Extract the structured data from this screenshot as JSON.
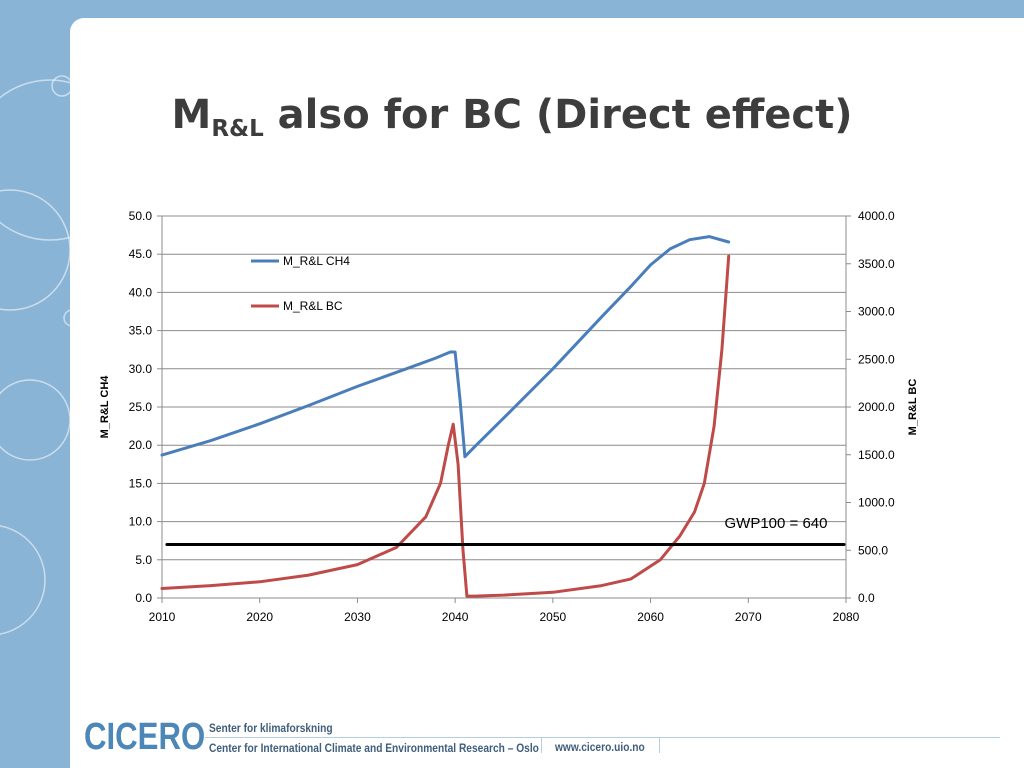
{
  "slide": {
    "title_main": "M",
    "title_sub": "R&L",
    "title_rest": " also for BC (Direct effect)"
  },
  "footer": {
    "logo": "CICERO",
    "line1": "Senter for klimaforskning",
    "line2": "Center for International Climate and Environmental Research – Oslo",
    "website": "www.cicero.uio.no"
  },
  "colors": {
    "background": "#8ab4d6",
    "series_ch4": "#4a7ebb",
    "series_bc": "#be4b48",
    "gwp_line": "#000000"
  },
  "chart_data": {
    "type": "line",
    "x_range": [
      2010,
      2080
    ],
    "x_ticks": [
      "2010",
      "2020",
      "2030",
      "2040",
      "2050",
      "2060",
      "2070",
      "2080"
    ],
    "y_left": {
      "label": "M_R&L CH4",
      "range": [
        0,
        50
      ],
      "ticks": [
        "0.0",
        "5.0",
        "10.0",
        "15.0",
        "20.0",
        "25.0",
        "30.0",
        "35.0",
        "40.0",
        "45.0",
        "50.0"
      ]
    },
    "y_right": {
      "label": "M_R&L BC",
      "range": [
        0,
        4000
      ],
      "ticks": [
        "0.0",
        "500.0",
        "1000.0",
        "1500.0",
        "2000.0",
        "2500.0",
        "3000.0",
        "3500.0",
        "4000.0"
      ]
    },
    "grid": "horizontal",
    "legend_position": "top-left",
    "series": [
      {
        "name": "M_R&L CH4",
        "axis": "left",
        "x": [
          2010,
          2015,
          2020,
          2025,
          2030,
          2035,
          2038,
          2039.5,
          2040,
          2040.5,
          2041,
          2042,
          2045,
          2050,
          2055,
          2058,
          2060,
          2062,
          2064,
          2066,
          2068
        ],
        "y": [
          18.7,
          20.6,
          22.8,
          25.2,
          27.7,
          30.0,
          31.4,
          32.2,
          32.2,
          26.0,
          18.5,
          19.8,
          23.6,
          30.0,
          36.8,
          40.8,
          43.6,
          45.7,
          46.9,
          47.3,
          46.6
        ]
      },
      {
        "name": "M_R&L BC",
        "axis": "right",
        "x": [
          2010,
          2015,
          2020,
          2025,
          2030,
          2034,
          2037,
          2038.5,
          2039.3,
          2039.8,
          2040.3,
          2040.8,
          2041.2,
          2042,
          2045,
          2050,
          2055,
          2058,
          2061,
          2063,
          2064.5,
          2065.5,
          2066.5,
          2067.3,
          2068
        ],
        "y": [
          100,
          130,
          170,
          240,
          350,
          530,
          850,
          1200,
          1600,
          1820,
          1400,
          500,
          20,
          20,
          30,
          60,
          130,
          200,
          400,
          650,
          900,
          1200,
          1800,
          2600,
          3580
        ]
      },
      {
        "axis": "left",
        "x": [
          2010.5,
          2079.8
        ],
        "y": [
          7.0,
          7.0
        ]
      }
    ],
    "annotations": [
      "GWP100 = 640"
    ]
  }
}
